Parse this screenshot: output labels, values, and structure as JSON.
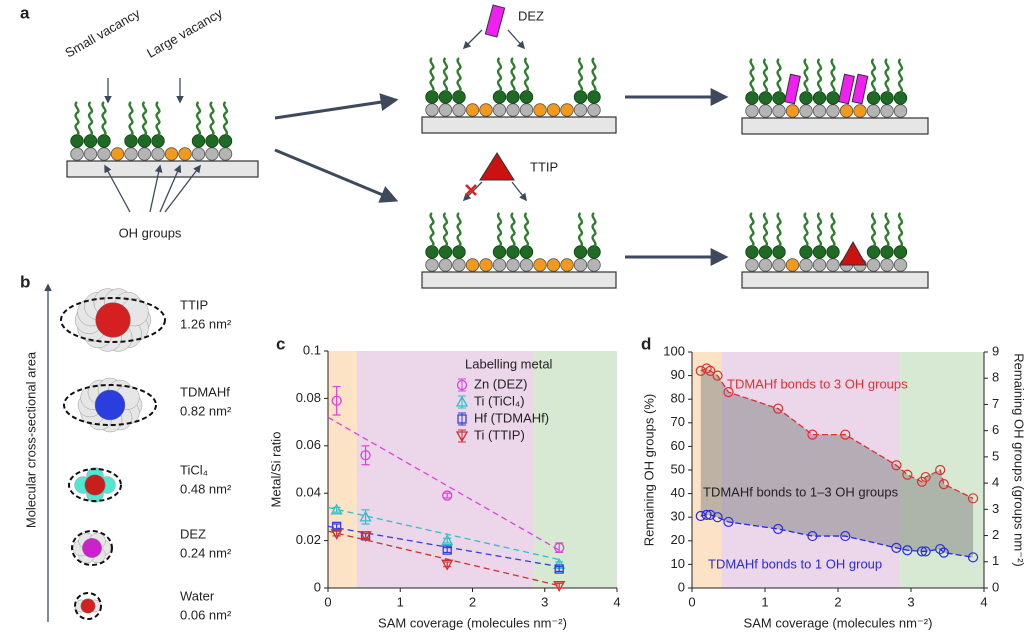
{
  "panel_a": {
    "label": "a",
    "small_vacancy": "Small vacancy",
    "large_vacancy": "Large vacancy",
    "oh_groups": "OH groups",
    "dez": "DEZ",
    "ttip": "TTIP"
  },
  "panel_b": {
    "label": "b",
    "axis_label": "Molecular cross-sectional area",
    "molecules": [
      {
        "name": "TTIP",
        "area": "1.26 nm²"
      },
      {
        "name": "TDMAHf",
        "area": "0.82 nm²"
      },
      {
        "name": "TiCl₄",
        "area": "0.48 nm²"
      },
      {
        "name": "DEZ",
        "area": "0.24 nm²"
      },
      {
        "name": "Water",
        "area": "0.06 nm²"
      }
    ]
  },
  "chart_data": [
    {
      "type": "scatter",
      "panel": "c",
      "xlabel": "SAM coverage (molecules nm⁻²)",
      "ylabel": "Metal/Si ratio",
      "xlim": [
        0,
        4
      ],
      "xticks": [
        0,
        1,
        2,
        3,
        4
      ],
      "ylim": [
        0,
        0.1
      ],
      "yticks": [
        0,
        0.02,
        0.04,
        0.06,
        0.08,
        0.1
      ],
      "legend_title": "Labelling metal",
      "legend": "upper right",
      "regions": [
        {
          "x": [
            0,
            0.4
          ],
          "color": "#fde3c6"
        },
        {
          "x": [
            0.4,
            2.85
          ],
          "color": "#ebd6ea"
        },
        {
          "x": [
            2.85,
            4
          ],
          "color": "#d7e9d3"
        }
      ],
      "series": [
        {
          "name": "Zn (DEZ)",
          "color": "#e040e0",
          "marker": "circle",
          "x": [
            0.12,
            0.52,
            1.65,
            3.2
          ],
          "values": [
            0.079,
            0.056,
            0.039,
            0.017
          ],
          "errors": [
            0.006,
            0.004,
            0.001,
            0.002
          ],
          "trend": {
            "x": [
              0,
              3.2
            ],
            "values": [
              0.072,
              0.016
            ]
          }
        },
        {
          "name": "Ti (TiCl₄)",
          "color": "#30c0c8",
          "marker": "triangle",
          "x": [
            0.12,
            0.52,
            1.65,
            3.2
          ],
          "values": [
            0.033,
            0.03,
            0.02,
            0.01
          ],
          "errors": [
            0.001,
            0.003,
            0.001,
            0.001
          ],
          "trend": {
            "x": [
              0,
              3.2
            ],
            "values": [
              0.034,
              0.012
            ]
          }
        },
        {
          "name": "Hf (TDMAHf)",
          "color": "#3040e0",
          "marker": "square",
          "x": [
            0.12,
            0.52,
            1.65,
            3.2
          ],
          "values": [
            0.026,
            0.022,
            0.016,
            0.008
          ],
          "errors": [
            0.001,
            0.001,
            0.001,
            0.001
          ],
          "trend": {
            "x": [
              0,
              3.2
            ],
            "values": [
              0.026,
              0.009
            ]
          }
        },
        {
          "name": "Ti (TTIP)",
          "color": "#d03030",
          "marker": "triangle-down",
          "x": [
            0.12,
            0.52,
            1.65,
            3.2
          ],
          "values": [
            0.023,
            0.022,
            0.01,
            0.001
          ],
          "errors": [
            0.001,
            0.001,
            0.001,
            0.001
          ],
          "trend": {
            "x": [
              0,
              3.2
            ],
            "values": [
              0.024,
              0.001
            ]
          }
        }
      ]
    },
    {
      "type": "line",
      "panel": "d",
      "xlabel": "SAM coverage (molecules nm⁻²)",
      "ylabel": "Remaining OH groups (%)",
      "y2label": "Remaining OH groups (groups nm⁻²)",
      "xlim": [
        0,
        4
      ],
      "xticks": [
        0,
        1,
        2,
        3,
        4
      ],
      "ylim": [
        0,
        100
      ],
      "yticks": [
        0,
        10,
        20,
        30,
        40,
        50,
        60,
        70,
        80,
        90,
        100
      ],
      "y2lim": [
        0,
        9
      ],
      "y2ticks": [
        0,
        1,
        2,
        3,
        4,
        5,
        6,
        7,
        8,
        9
      ],
      "fill_between": "#8a8a8a",
      "regions": [
        {
          "x": [
            0,
            0.4
          ],
          "color": "#fde3c6"
        },
        {
          "x": [
            0.4,
            2.85
          ],
          "color": "#ebd6ea"
        },
        {
          "x": [
            2.85,
            4
          ],
          "color": "#d7e9d3"
        }
      ],
      "annotations": [
        {
          "text": "TDMAHf bonds to 3 OH groups",
          "color": "#e03030"
        },
        {
          "text": "TDMAHf bonds to 1–3 OH groups",
          "color": "#222222"
        },
        {
          "text": "TDMAHf bonds to 1 OH group",
          "color": "#2a2ae0"
        }
      ],
      "series": [
        {
          "color": "#e03030",
          "x": [
            0.12,
            0.2,
            0.25,
            0.35,
            0.5,
            1.18,
            1.65,
            2.1,
            2.8,
            2.95,
            3.15,
            3.2,
            3.4,
            3.45,
            3.85
          ],
          "values": [
            92,
            93,
            92,
            90,
            83,
            76,
            65,
            65,
            52,
            48,
            45,
            47,
            50,
            44,
            38
          ]
        },
        {
          "color": "#2a2ae0",
          "x": [
            0.12,
            0.2,
            0.25,
            0.35,
            0.5,
            1.18,
            1.65,
            2.1,
            2.8,
            2.95,
            3.15,
            3.2,
            3.4,
            3.45,
            3.85
          ],
          "values": [
            30.5,
            31,
            31,
            30,
            28,
            25,
            22,
            22,
            17,
            16,
            15.5,
            15.5,
            16.5,
            15,
            13
          ]
        }
      ]
    }
  ]
}
